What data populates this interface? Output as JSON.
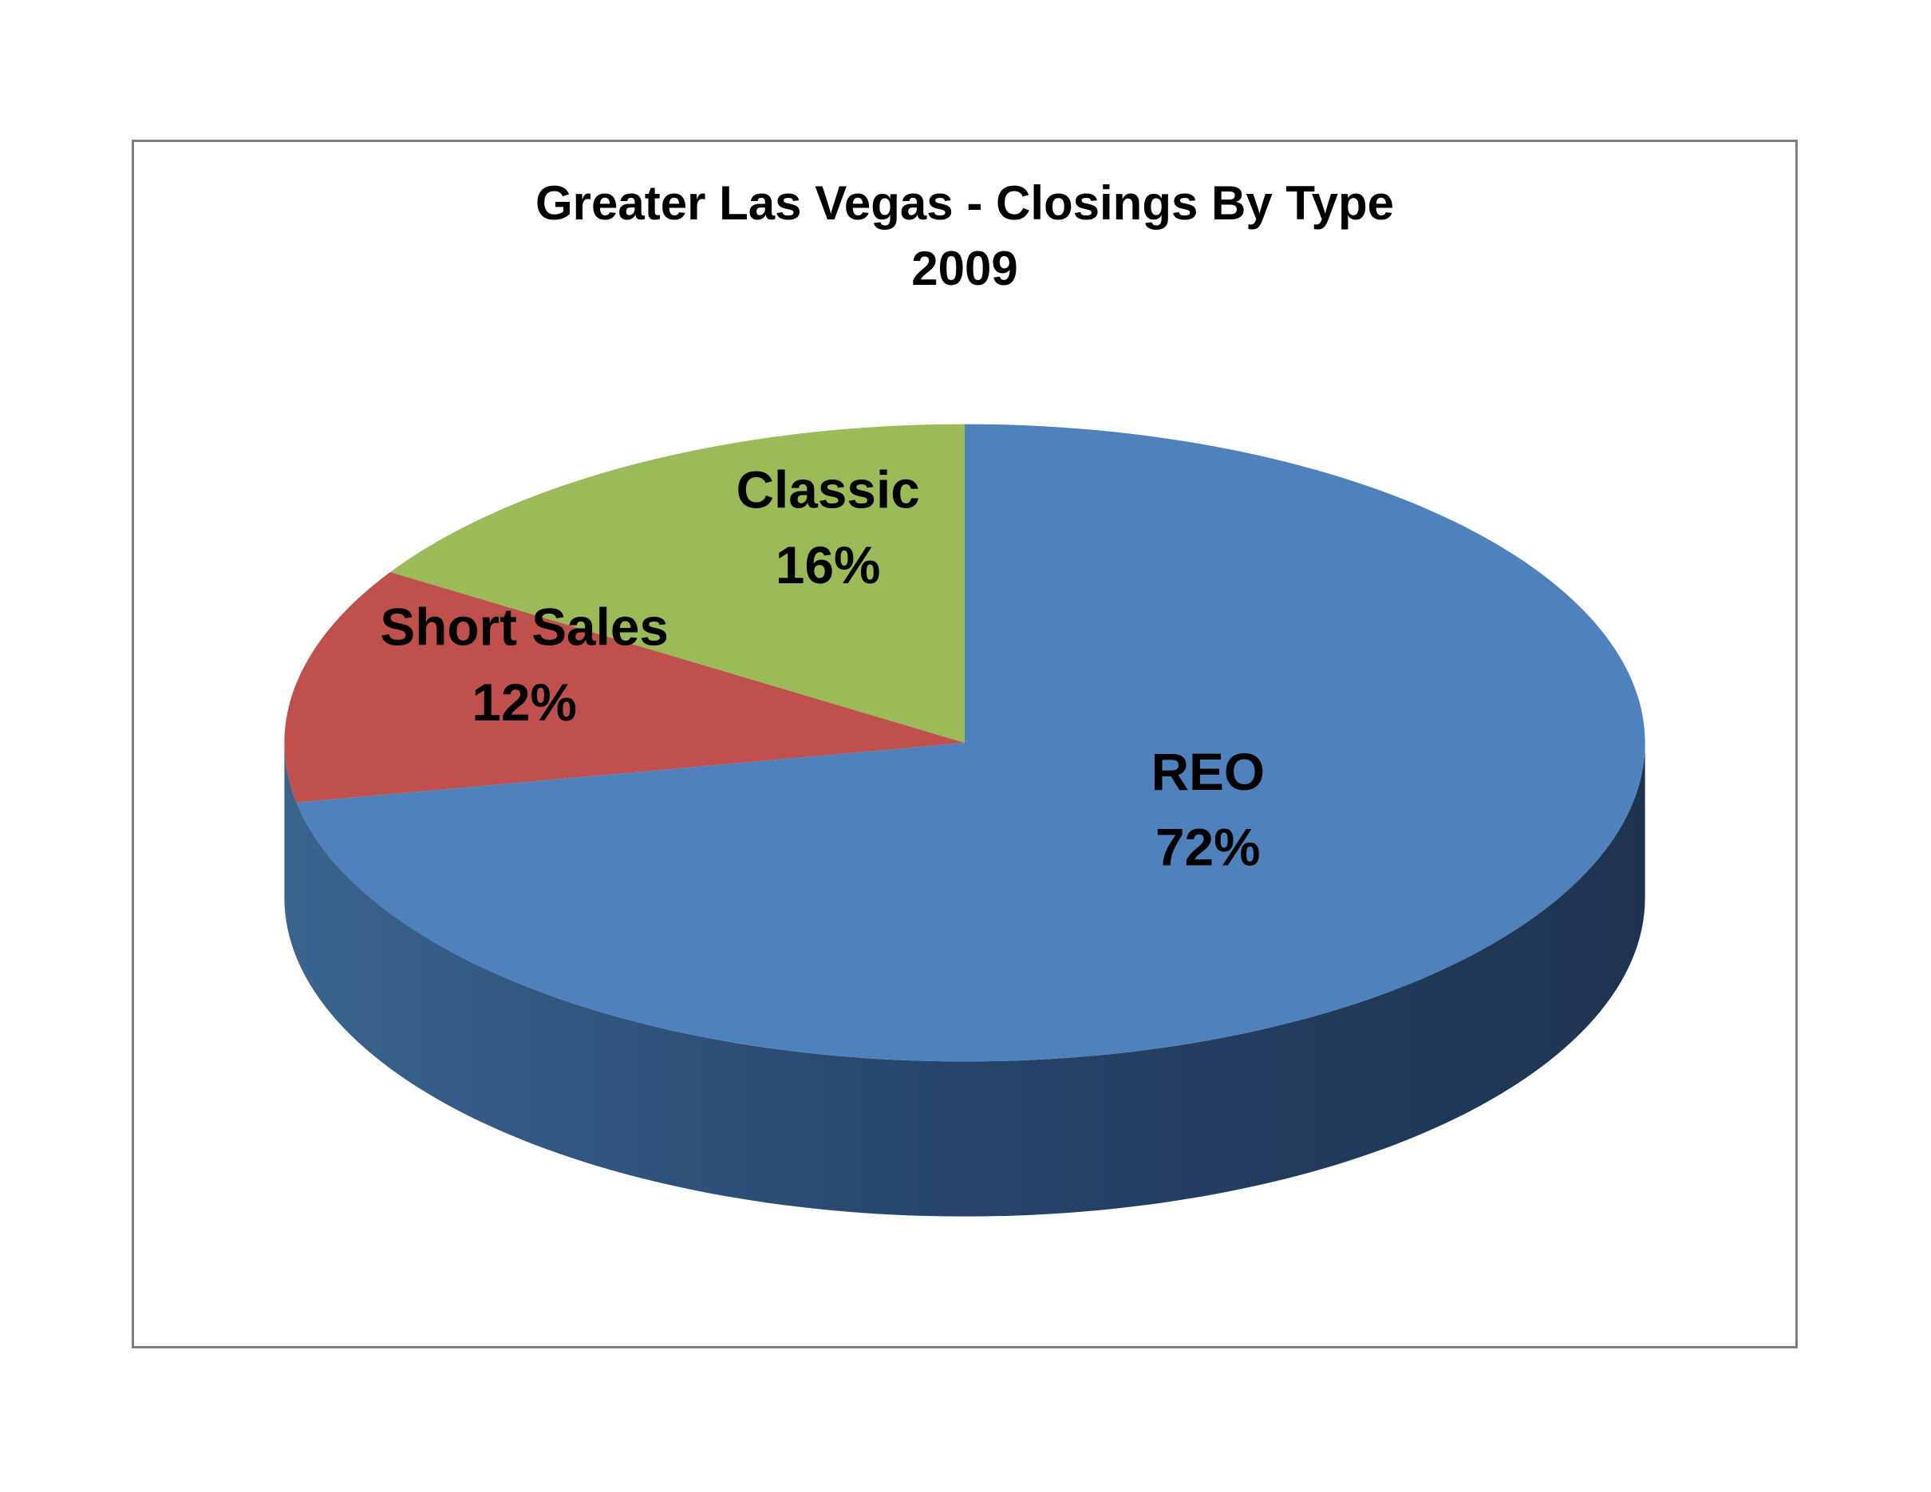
{
  "chart_data": {
    "type": "pie",
    "style": "3d",
    "title": "Greater Las Vegas - Closings By Type",
    "subtitle": "2009",
    "legend": "none",
    "direction": "clockwise",
    "start_angle_deg": 0,
    "labels_format": "category name above percentage",
    "label_color": "#000000",
    "chart_border_color": "#7F7F7F",
    "background_color": "#FFFFFF",
    "categories": [
      "REO",
      "Short Sales",
      "Classic"
    ],
    "values": [
      72,
      12,
      16
    ],
    "slices": [
      {
        "label": "REO",
        "value_pct": 72,
        "pct_label": "72%",
        "color": "#4F81BD"
      },
      {
        "label": "Short Sales",
        "value_pct": 12,
        "pct_label": "12%",
        "color": "#C0504D"
      },
      {
        "label": "Classic",
        "value_pct": 16,
        "pct_label": "16%",
        "color": "#9BBB59"
      }
    ],
    "side_gradient": [
      "#3A648F",
      "#26446B",
      "#1E3350"
    ]
  }
}
